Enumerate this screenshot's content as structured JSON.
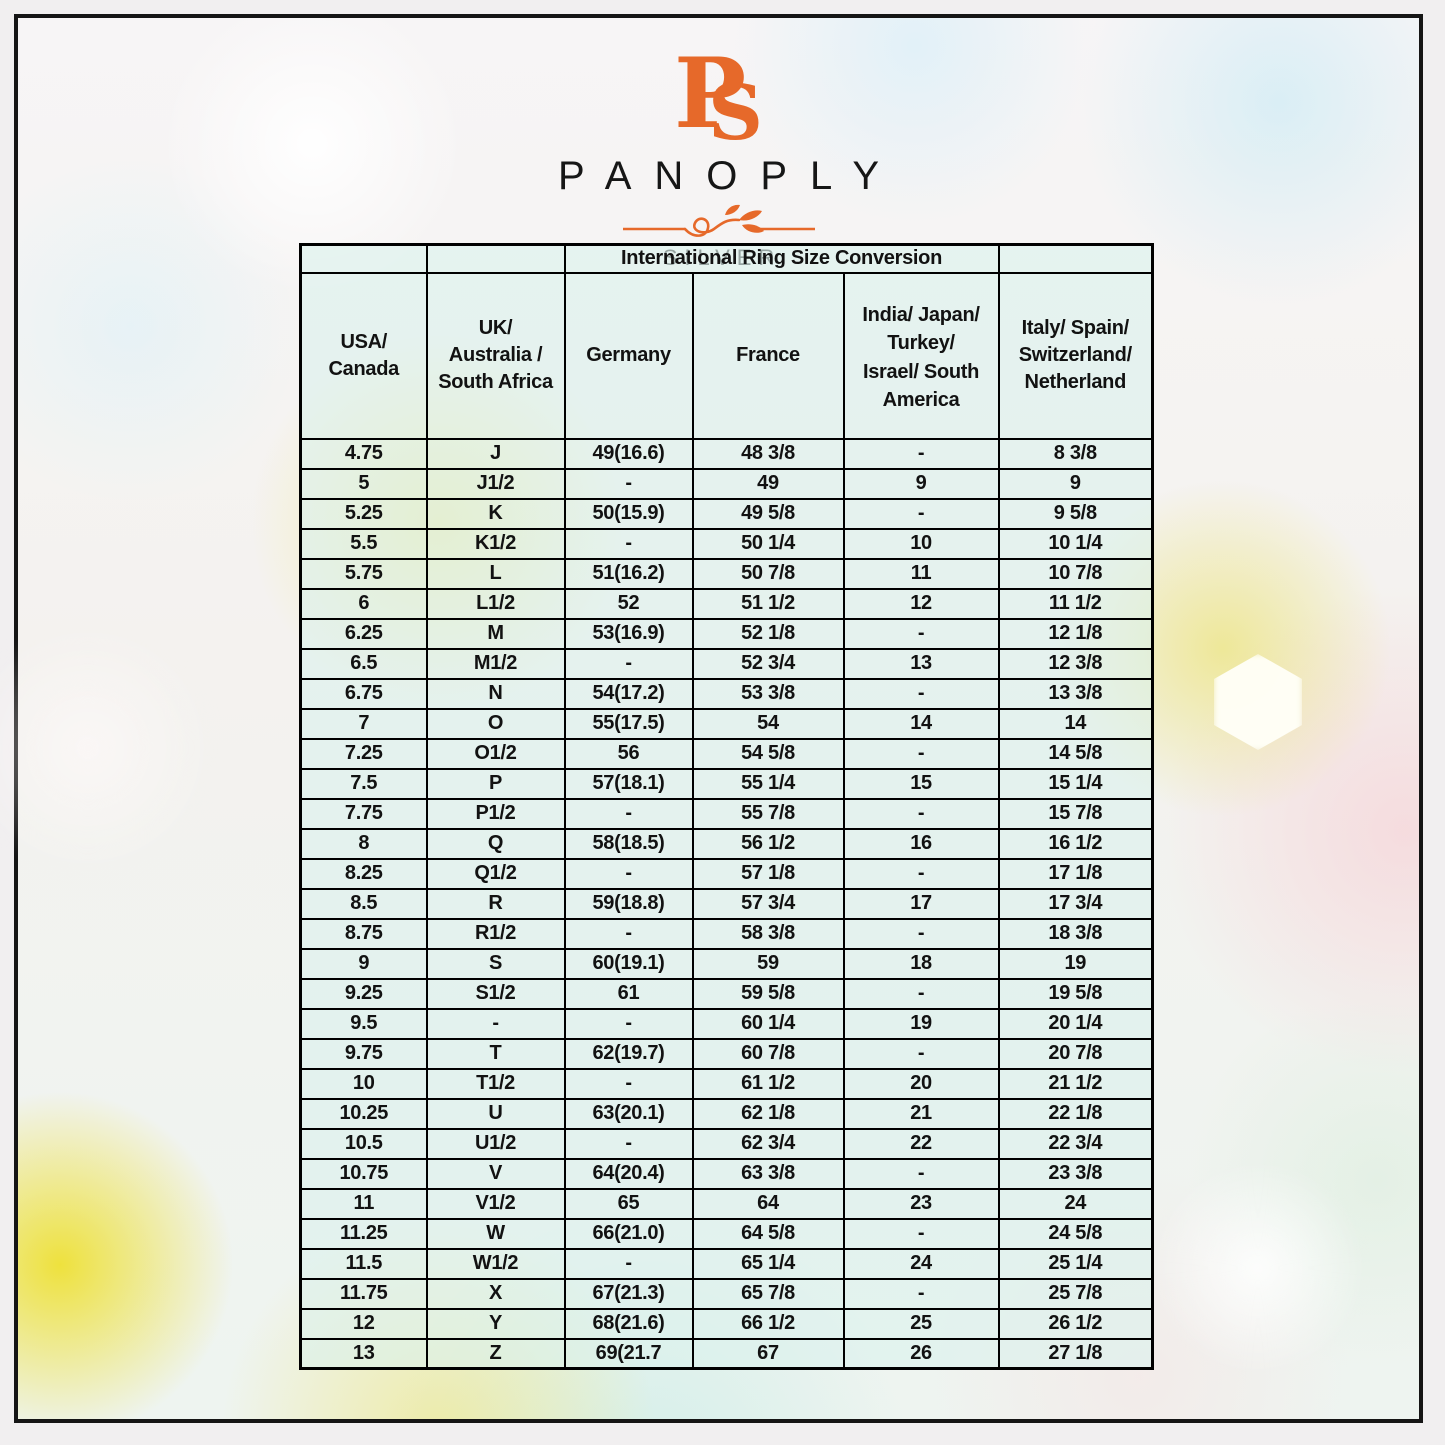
{
  "brand": {
    "monogram": {
      "p": "P",
      "s": "S"
    },
    "name": "PANOPLY",
    "tagline": "SILVER"
  },
  "colors": {
    "accent_orange": "#E6692A",
    "frame_black": "#151515",
    "cell_tint": "rgba(219,242,237,0.60)",
    "text_dark": "#121212"
  },
  "table": {
    "title": "International Ring Size Conversion",
    "headers": [
      "USA/\nCanada",
      "UK/\nAustralia /\nSouth Africa",
      "Germany",
      "France",
      "India/ Japan/\nTurkey/\nIsrael/ South\nAmerica",
      "Italy/ Spain/\nSwitzerland/\nNetherland"
    ],
    "rows": [
      [
        "4.75",
        "J",
        "49(16.6)",
        "48 3/8",
        "-",
        "8 3/8"
      ],
      [
        "5",
        "J1/2",
        "-",
        "49",
        "9",
        "9"
      ],
      [
        "5.25",
        "K",
        "50(15.9)",
        "49 5/8",
        "-",
        "9 5/8"
      ],
      [
        "5.5",
        "K1/2",
        "-",
        "50 1/4",
        "10",
        "10 1/4"
      ],
      [
        "5.75",
        "L",
        "51(16.2)",
        "50 7/8",
        "11",
        "10 7/8"
      ],
      [
        "6",
        "L1/2",
        "52",
        "51 1/2",
        "12",
        "11 1/2"
      ],
      [
        "6.25",
        "M",
        "53(16.9)",
        "52 1/8",
        "-",
        "12 1/8"
      ],
      [
        "6.5",
        "M1/2",
        "-",
        "52 3/4",
        "13",
        "12 3/8"
      ],
      [
        "6.75",
        "N",
        "54(17.2)",
        "53 3/8",
        "-",
        "13 3/8"
      ],
      [
        "7",
        "O",
        "55(17.5)",
        "54",
        "14",
        "14"
      ],
      [
        "7.25",
        "O1/2",
        "56",
        "54 5/8",
        "-",
        "14 5/8"
      ],
      [
        "7.5",
        "P",
        "57(18.1)",
        "55 1/4",
        "15",
        "15 1/4"
      ],
      [
        "7.75",
        "P1/2",
        "-",
        "55 7/8",
        "-",
        "15 7/8"
      ],
      [
        "8",
        "Q",
        "58(18.5)",
        "56 1/2",
        "16",
        "16 1/2"
      ],
      [
        "8.25",
        "Q1/2",
        "-",
        "57 1/8",
        "-",
        "17 1/8"
      ],
      [
        "8.5",
        "R",
        "59(18.8)",
        "57 3/4",
        "17",
        "17 3/4"
      ],
      [
        "8.75",
        "R1/2",
        "-",
        "58 3/8",
        "-",
        "18 3/8"
      ],
      [
        "9",
        "S",
        "60(19.1)",
        "59",
        "18",
        "19"
      ],
      [
        "9.25",
        "S1/2",
        "61",
        "59 5/8",
        "-",
        "19 5/8"
      ],
      [
        "9.5",
        "-",
        "-",
        "60 1/4",
        "19",
        "20 1/4"
      ],
      [
        "9.75",
        "T",
        "62(19.7)",
        "60 7/8",
        "-",
        "20 7/8"
      ],
      [
        "10",
        "T1/2",
        "-",
        "61 1/2",
        "20",
        "21 1/2"
      ],
      [
        "10.25",
        "U",
        "63(20.1)",
        "62 1/8",
        "21",
        "22 1/8"
      ],
      [
        "10.5",
        "U1/2",
        "-",
        "62 3/4",
        "22",
        "22 3/4"
      ],
      [
        "10.75",
        "V",
        "64(20.4)",
        "63 3/8",
        "-",
        "23 3/8"
      ],
      [
        "11",
        "V1/2",
        "65",
        "64",
        "23",
        "24"
      ],
      [
        "11.25",
        "W",
        "66(21.0)",
        "64 5/8",
        "-",
        "24 5/8"
      ],
      [
        "11.5",
        "W1/2",
        "-",
        "65 1/4",
        "24",
        "25 1/4"
      ],
      [
        "11.75",
        "X",
        "67(21.3)",
        "65 7/8",
        "-",
        "25 7/8"
      ],
      [
        "12",
        "Y",
        "68(21.6)",
        "66 1/2",
        "25",
        "26 1/2"
      ],
      [
        "13",
        "Z",
        "69(21.7",
        "67",
        "26",
        "27 1/8"
      ]
    ]
  }
}
